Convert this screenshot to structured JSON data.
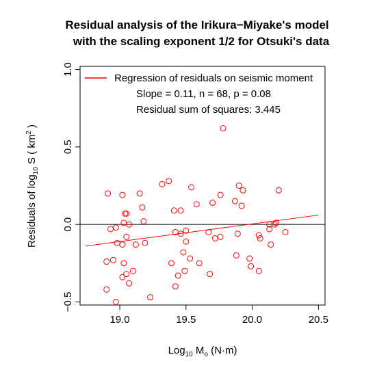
{
  "chart_data": {
    "type": "scatter",
    "title_lines": [
      "Residual analysis of the Irikura−Miyake's model",
      "with the scaling exponent 1/2 for Otsuki's data"
    ],
    "xlabel": {
      "base": "Log",
      "sub": "10",
      "mid": " M",
      "sub2": "o",
      "tail": " (N·m)"
    },
    "ylabel": {
      "pre": "Residuals  of  log",
      "sub": "10",
      "mid": " S ( km",
      "sup": "2",
      "tail": " )"
    },
    "xlim": [
      18.7,
      20.55
    ],
    "ylim": [
      -0.52,
      1.02
    ],
    "xticks": [
      19.0,
      19.5,
      20.0,
      20.5
    ],
    "xtick_labels": [
      "19.0",
      "19.5",
      "20.0",
      "20.5"
    ],
    "yticks": [
      -0.5,
      0.0,
      0.5,
      1.0
    ],
    "ytick_labels": [
      "−0.5",
      "0.0",
      "0.5",
      "1.0"
    ],
    "zero_line": 0,
    "regression": {
      "x": [
        18.74,
        20.5
      ],
      "y": [
        -0.14,
        0.06
      ]
    },
    "legend": {
      "entry": "Regression of residuals on seismic moment",
      "line1": "Slope = 0.11, n = 68, p = 0.08",
      "line2": "Residual sum of squares:  3.445",
      "position": "top"
    },
    "colors": {
      "points": "#ff0000",
      "regression": "#ff0000",
      "axis": "#000000"
    },
    "series": [
      {
        "x": [
          18.91,
          18.9,
          18.93,
          18.97,
          18.97,
          18.95,
          18.9,
          18.98,
          19.02,
          19.04,
          19.03,
          19.05,
          19.05,
          19.07,
          19.02,
          19.03,
          19.05,
          19.02,
          19.07,
          19.1,
          19.12,
          19.15,
          19.17,
          19.18,
          19.19,
          19.23,
          19.32,
          19.37,
          19.41,
          19.42,
          19.44,
          19.42,
          19.46,
          19.46,
          19.39,
          19.48,
          19.5,
          19.5,
          19.49,
          19.53,
          19.54,
          19.58,
          19.6,
          19.67,
          19.68,
          19.72,
          19.76,
          19.76,
          19.78,
          19.87,
          19.88,
          19.9,
          19.89,
          19.92,
          19.93,
          19.98,
          19.99,
          20.05,
          20.05,
          20.06,
          20.13,
          20.13,
          20.14,
          20.18,
          20.2,
          20.25,
          20.17,
          19.7
        ],
        "y": [
          0.2,
          -0.42,
          -0.03,
          -0.5,
          -0.02,
          -0.23,
          -0.24,
          -0.12,
          0.19,
          0.07,
          0.01,
          0.07,
          -0.08,
          0.0,
          -0.13,
          -0.25,
          -0.32,
          -0.34,
          -0.38,
          -0.3,
          -0.13,
          0.2,
          0.11,
          0.02,
          -0.12,
          -0.47,
          0.26,
          0.28,
          0.09,
          -0.05,
          -0.33,
          -0.4,
          -0.06,
          0.09,
          -0.25,
          -0.18,
          -0.04,
          -0.11,
          -0.3,
          -0.22,
          0.24,
          0.13,
          -0.25,
          -0.05,
          -0.32,
          -0.09,
          0.19,
          -0.08,
          0.62,
          0.15,
          -0.2,
          0.25,
          -0.06,
          0.12,
          0.22,
          -0.22,
          -0.27,
          -0.3,
          -0.07,
          -0.09,
          -0.03,
          0.0,
          -0.13,
          0.01,
          0.22,
          -0.05,
          0.0,
          0.14
        ]
      }
    ]
  }
}
